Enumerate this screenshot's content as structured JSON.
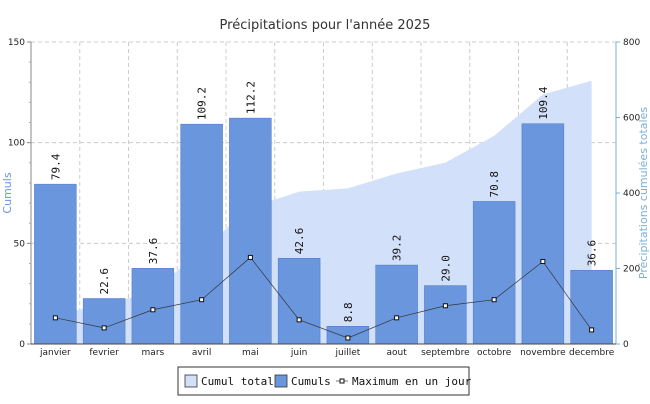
{
  "colors": {
    "bar_fill": "#6a96de",
    "bar_stroke": "#4a78c8",
    "area_fill": "#d2e0fa",
    "line": "#333333",
    "left_axis_label": "#6a96de",
    "right_axis_label": "#7ab0d8",
    "grid": "#cccccc"
  },
  "chart_data": {
    "type": "bar",
    "title": "Précipitations pour l'année 2025",
    "categories": [
      "janvier",
      "fevrier",
      "mars",
      "avril",
      "mai",
      "juin",
      "juillet",
      "aout",
      "septembre",
      "octobre",
      "novembre",
      "decembre"
    ],
    "ylabel_left": "Cumuls",
    "ylabel_right": "Précipitations cumulées totales",
    "ylim_left": [
      0,
      150
    ],
    "ylim_right": [
      0,
      800
    ],
    "yticks_left": [
      "0",
      "50",
      "100",
      "150"
    ],
    "yticks_right": [
      "0",
      "200",
      "400",
      "600",
      "800"
    ],
    "grid": true,
    "legend_position": "bottom",
    "series": [
      {
        "name": "Cumul total",
        "type": "area",
        "axis": "right",
        "values": [
          79.4,
          102.0,
          139.6,
          248.8,
          361.0,
          403.6,
          412.4,
          451.6,
          480.6,
          551.4,
          660.8,
          697.4
        ]
      },
      {
        "name": "Cumuls",
        "type": "bar",
        "axis": "left",
        "values": [
          79.4,
          22.6,
          37.6,
          109.2,
          112.2,
          42.6,
          8.8,
          39.2,
          29.0,
          70.8,
          109.4,
          36.6
        ],
        "labels": [
          "79.4",
          "22.6",
          "37.6",
          "109.2",
          "112.2",
          "42.6",
          "8.8",
          "39.2",
          "29.0",
          "70.8",
          "109.4",
          "36.6"
        ]
      },
      {
        "name": "Maximum en un jour",
        "type": "line",
        "axis": "left",
        "values": [
          13,
          8,
          17,
          22,
          43,
          12,
          3,
          13,
          19,
          22,
          41,
          7
        ]
      }
    ]
  }
}
